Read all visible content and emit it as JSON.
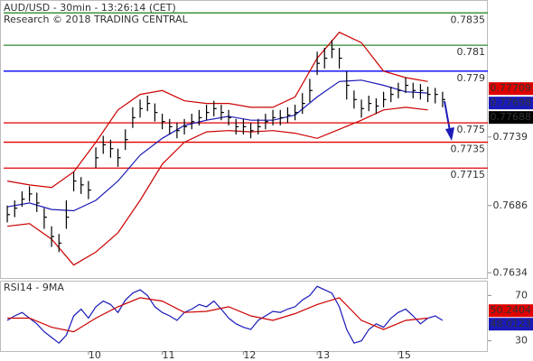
{
  "chart_data": [
    {
      "type": "ohlc",
      "title": "AUD/USD - 30min - 13:26:14 (CET)",
      "subtitle": "Research © 2018 TRADING CENTRAL",
      "categories": [
        null,
        null,
        null,
        null,
        null,
        null,
        null,
        null,
        null,
        null,
        null,
        "10",
        null,
        null,
        null,
        null,
        null,
        null,
        null,
        null,
        null,
        "11",
        null,
        null,
        null,
        null,
        null,
        null,
        null,
        null,
        null,
        null,
        "12",
        null,
        null,
        null,
        null,
        null,
        null,
        null,
        null,
        null,
        "13",
        null,
        null,
        null,
        null,
        null,
        null,
        null,
        null,
        null,
        null,
        "15",
        null,
        null,
        null,
        null,
        null,
        null
      ],
      "color": "#000000",
      "high": [
        0.7686,
        0.769,
        0.7697,
        0.7701,
        0.7696,
        0.7684,
        0.767,
        0.7664,
        0.769,
        0.7712,
        0.7708,
        0.7705,
        0.7731,
        0.774,
        0.7737,
        0.773,
        0.7745,
        0.7762,
        0.7768,
        0.7771,
        0.7765,
        0.7757,
        0.7753,
        0.775,
        0.7753,
        0.7757,
        0.776,
        0.7764,
        0.7767,
        0.7764,
        0.776,
        0.7753,
        0.7753,
        0.775,
        0.7753,
        0.7757,
        0.776,
        0.776,
        0.7762,
        0.7764,
        0.7773,
        0.7784,
        0.7805,
        0.7808,
        0.7814,
        0.7808,
        0.779,
        0.7775,
        0.7768,
        0.7771,
        0.7769,
        0.7774,
        0.7778,
        0.7781,
        0.7785,
        0.7781,
        0.778,
        0.7778,
        0.7777,
        0.7774
      ],
      "low": [
        0.7673,
        0.7677,
        0.7685,
        0.7689,
        0.7681,
        0.7668,
        0.7654,
        0.765,
        0.7668,
        0.7697,
        0.7695,
        0.7691,
        0.7715,
        0.7726,
        0.7723,
        0.7716,
        0.7729,
        0.7746,
        0.7754,
        0.7759,
        0.7751,
        0.7745,
        0.7741,
        0.7738,
        0.7741,
        0.7745,
        0.7748,
        0.7752,
        0.7755,
        0.7752,
        0.7748,
        0.7741,
        0.7741,
        0.7738,
        0.7741,
        0.7745,
        0.7748,
        0.7748,
        0.775,
        0.7752,
        0.7757,
        0.7766,
        0.7787,
        0.7792,
        0.78,
        0.7792,
        0.7768,
        0.7761,
        0.7754,
        0.7759,
        0.7757,
        0.7762,
        0.7766,
        0.7769,
        0.7773,
        0.7769,
        0.7768,
        0.7766,
        0.7765,
        0.7762
      ],
      "close": [
        0.7679,
        0.7684,
        0.7691,
        0.7695,
        0.7688,
        0.7677,
        0.7662,
        0.7657,
        0.7677,
        0.7705,
        0.7702,
        0.7698,
        0.7723,
        0.7733,
        0.773,
        0.7723,
        0.7737,
        0.7754,
        0.7761,
        0.7765,
        0.7758,
        0.7751,
        0.7747,
        0.7744,
        0.7747,
        0.7751,
        0.7754,
        0.7758,
        0.7761,
        0.7758,
        0.7754,
        0.7747,
        0.7747,
        0.7744,
        0.7747,
        0.7751,
        0.7754,
        0.7754,
        0.7756,
        0.7758,
        0.7765,
        0.7775,
        0.7796,
        0.78,
        0.7807,
        0.78,
        0.7779,
        0.7768,
        0.7761,
        0.7765,
        0.7763,
        0.7768,
        0.7772,
        0.7775,
        0.7779,
        0.7775,
        0.7775,
        0.7772,
        0.7772,
        0.7768
      ],
      "overlay_x": [
        0,
        3,
        6,
        9,
        12,
        15,
        18,
        21,
        24,
        27,
        30,
        33,
        36,
        39,
        42,
        45,
        48,
        51,
        54,
        57
      ],
      "overlays": [
        {
          "color": "#1a1ab8",
          "values": [
            0.7685,
            0.7688,
            0.7683,
            0.7682,
            0.769,
            0.7705,
            0.7725,
            0.7738,
            0.7748,
            0.7752,
            0.7755,
            0.7752,
            0.7752,
            0.7756,
            0.777,
            0.7782,
            0.7783,
            0.7779,
            0.7774,
            0.7773
          ]
        },
        {
          "color": "#cc0000",
          "values": [
            0.7705,
            0.7702,
            0.77,
            0.7712,
            0.7735,
            0.776,
            0.7772,
            0.7775,
            0.7767,
            0.7765,
            0.7765,
            0.7762,
            0.7762,
            0.777,
            0.78,
            0.782,
            0.7812,
            0.779,
            0.7785,
            0.7782
          ]
        },
        {
          "color": "#cc0000",
          "values": [
            0.767,
            0.7672,
            0.766,
            0.764,
            0.765,
            0.7665,
            0.769,
            0.7718,
            0.7735,
            0.7743,
            0.7744,
            0.7743,
            0.7744,
            0.7742,
            0.7738,
            0.7745,
            0.7752,
            0.776,
            0.7762,
            0.776
          ]
        }
      ],
      "levels": [
        {
          "value": 0.7835,
          "color": "#2e8b2e"
        },
        {
          "value": 0.781,
          "color": "#2e8b2e"
        },
        {
          "value": 0.779,
          "color": "#0000ff"
        },
        {
          "value": 0.775,
          "color": "#e00000"
        },
        {
          "value": 0.7735,
          "color": "#e00000"
        },
        {
          "value": 0.7715,
          "color": "#e00000"
        }
      ],
      "price_tags": [
        {
          "value": 0.77709,
          "color": "#e00000"
        },
        {
          "value": 0.77698,
          "color": "#1a1ab8"
        },
        {
          "value": 0.77688,
          "color": "#000000"
        }
      ],
      "ylim": [
        0.763,
        0.7845
      ],
      "yticks": [
        0.7739,
        0.7686,
        0.7634
      ]
    },
    {
      "type": "line",
      "title": "RSI14 - 9MA",
      "series": [
        {
          "color": "#1a1ab8",
          "values": [
            48,
            52,
            55,
            50,
            45,
            38,
            33,
            28,
            35,
            52,
            58,
            50,
            60,
            65,
            62,
            55,
            66,
            72,
            75,
            70,
            60,
            55,
            52,
            48,
            55,
            58,
            62,
            60,
            65,
            58,
            50,
            45,
            42,
            40,
            48,
            52,
            56,
            55,
            58,
            60,
            66,
            70,
            78,
            75,
            72,
            60,
            40,
            28,
            30,
            40,
            45,
            42,
            50,
            55,
            58,
            52,
            45,
            50,
            52,
            48
          ]
        },
        {
          "color": "#cc0000",
          "x": [
            0,
            3,
            6,
            9,
            12,
            15,
            18,
            21,
            24,
            27,
            30,
            33,
            36,
            39,
            42,
            45,
            48,
            51,
            54,
            57
          ],
          "values": [
            50,
            50,
            42,
            38,
            50,
            60,
            68,
            65,
            55,
            56,
            60,
            52,
            48,
            54,
            62,
            68,
            48,
            40,
            48,
            50
          ]
        }
      ],
      "value_tags": [
        {
          "value": 50.2404,
          "color": "#e00000"
        },
        {
          "value": 48.0123,
          "color": "#1a1ab8"
        }
      ],
      "ylim": [
        21,
        83
      ],
      "yticks": [
        70,
        30
      ]
    }
  ]
}
